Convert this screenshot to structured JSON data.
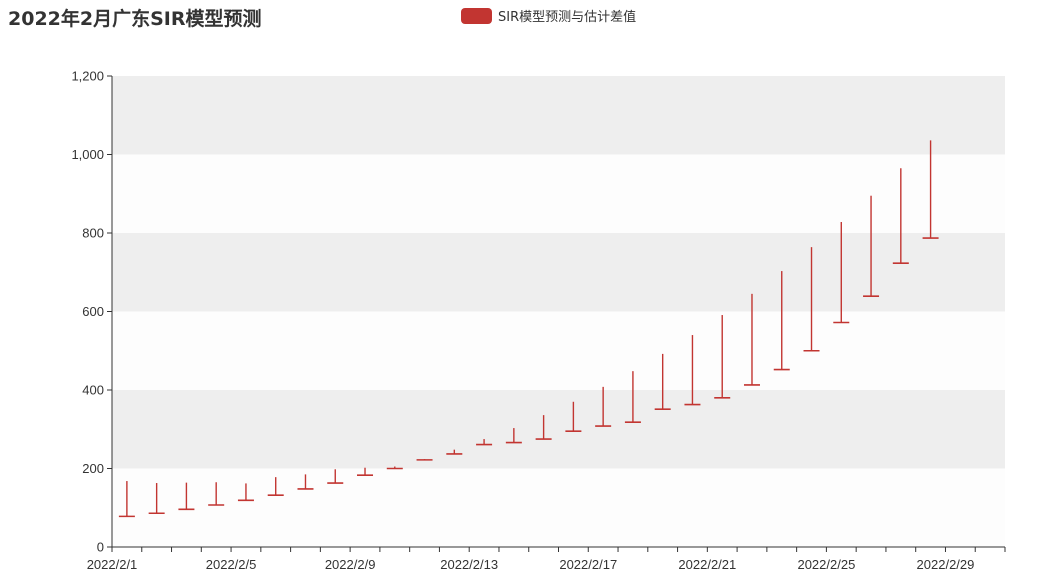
{
  "chart_data": {
    "type": "bar",
    "title": "2022年2月广东SIR模型预测",
    "legend": {
      "label": "SIR模型预测与估计差值",
      "color": "#c23531",
      "placement": "top-center"
    },
    "series_color": "#c23531",
    "grid": {
      "striped_y": true,
      "stripe_colors": [
        "#fdfdfd",
        "#eeeeee"
      ]
    },
    "xlabel": "",
    "ylabel": "",
    "ylim": [
      0,
      1200
    ],
    "y_ticks": [
      0,
      200,
      400,
      600,
      800,
      1000,
      1200
    ],
    "y_tick_labels": [
      "0",
      "200",
      "400",
      "600",
      "800",
      "1,000",
      "1,200"
    ],
    "x_tick_labels": [
      "2022/2/1",
      "2022/2/5",
      "2022/2/9",
      "2022/2/13",
      "2022/2/17",
      "2022/2/21",
      "2022/2/25",
      "2022/2/29"
    ],
    "categories": [
      "2022/2/1",
      "2022/2/2",
      "2022/2/3",
      "2022/2/4",
      "2022/2/5",
      "2022/2/6",
      "2022/2/7",
      "2022/2/8",
      "2022/2/9",
      "2022/2/10",
      "2022/2/11",
      "2022/2/12",
      "2022/2/13",
      "2022/2/14",
      "2022/2/15",
      "2022/2/16",
      "2022/2/17",
      "2022/2/18",
      "2022/2/19",
      "2022/2/20",
      "2022/2/21",
      "2022/2/22",
      "2022/2/23",
      "2022/2/24",
      "2022/2/25",
      "2022/2/26",
      "2022/2/27",
      "2022/2/28"
    ],
    "series": [
      {
        "name": "SIR模型预测与估计差值",
        "values": [
          [
            168,
            78
          ],
          [
            163,
            86
          ],
          [
            164,
            96
          ],
          [
            165,
            107
          ],
          [
            162,
            119
          ],
          [
            178,
            132
          ],
          [
            185,
            148
          ],
          [
            198,
            163
          ],
          [
            202,
            183
          ],
          [
            205,
            200
          ],
          [
            224,
            222
          ],
          [
            248,
            237
          ],
          [
            275,
            261
          ],
          [
            303,
            266
          ],
          [
            336,
            275
          ],
          [
            370,
            295
          ],
          [
            408,
            308
          ],
          [
            448,
            318
          ],
          [
            492,
            351
          ],
          [
            540,
            363
          ],
          [
            591,
            380
          ],
          [
            645,
            413
          ],
          [
            703,
            452
          ],
          [
            764,
            500
          ],
          [
            828,
            572
          ],
          [
            895,
            639
          ],
          [
            965,
            723
          ],
          [
            1036,
            787
          ]
        ]
      }
    ]
  }
}
